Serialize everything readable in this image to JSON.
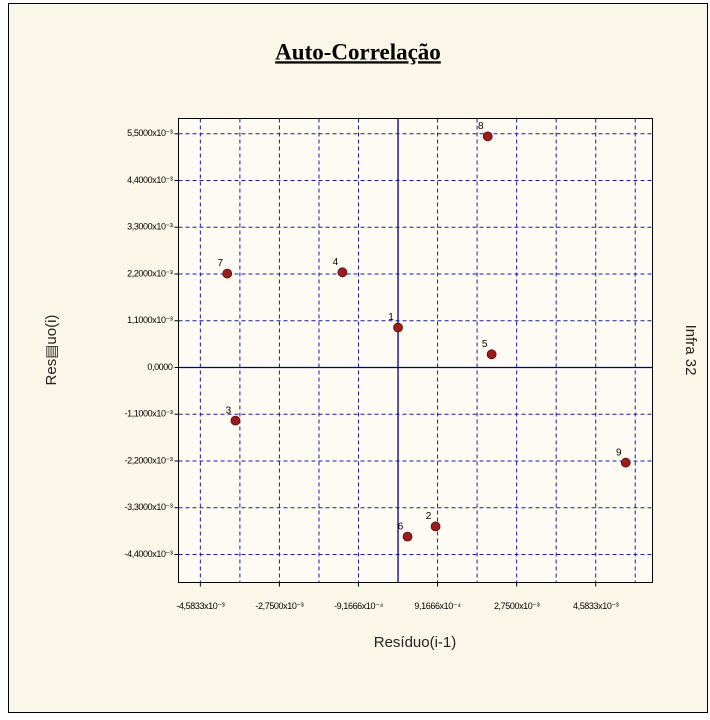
{
  "chart_data": {
    "type": "scatter",
    "title": "Auto-Correlação",
    "xlabel": "Resíduo(i-1)",
    "ylabel": "Res▤uo(i)",
    "side_label": "Infra 32",
    "color": "#9b1c1c",
    "grid": true,
    "grid_color": "#1a1aa6",
    "point_labels": [
      "1",
      "2",
      "3",
      "4",
      "5",
      "6",
      "7",
      "8",
      "9"
    ],
    "x": [
      0.0,
      0.00087,
      -0.00377,
      -0.00129,
      0.00217,
      0.00022,
      -0.00396,
      0.00208,
      0.00528
    ],
    "values": [
      0.00094,
      -0.00374,
      -0.00125,
      0.00224,
      0.00031,
      -0.00398,
      0.00221,
      0.00544,
      -0.00224
    ],
    "xlim": [
      -0.00509,
      0.0059
    ],
    "ylim": [
      -0.00506,
      0.00586
    ],
    "xticks": [
      {
        "value": -0.0045833,
        "label": "-4,5833x10⁻³"
      },
      {
        "value": -0.00275,
        "label": "-2,7500x10⁻³"
      },
      {
        "value": -0.00091666,
        "label": "-9,1666x10⁻⁴"
      },
      {
        "value": 0.00091666,
        "label": "9,1666x10⁻⁴"
      },
      {
        "value": 0.00275,
        "label": "2,7500x10⁻³"
      },
      {
        "value": 0.0045833,
        "label": "4,5833x10⁻³"
      }
    ],
    "xgrid": [
      -0.0045833,
      -0.0036666,
      -0.00275,
      -0.0018333,
      -0.00091666,
      0.00091666,
      0.0018333,
      0.00275,
      0.0036666,
      0.0045833,
      0.0055
    ],
    "yticks": [
      {
        "value": 0.0055,
        "label": "5,5000x10⁻³"
      },
      {
        "value": 0.0044,
        "label": "4,4000x10⁻³"
      },
      {
        "value": 0.0033,
        "label": "3,3000x10⁻³"
      },
      {
        "value": 0.0022,
        "label": "2,2000x10⁻³"
      },
      {
        "value": 0.0011,
        "label": "1,1000x10⁻³"
      },
      {
        "value": 0,
        "label": "0,0000"
      },
      {
        "value": -0.0011,
        "label": "-1,1000x10⁻³"
      },
      {
        "value": -0.0022,
        "label": "-2,2000x10⁻³"
      },
      {
        "value": -0.0033,
        "label": "-3,3000x10⁻³"
      },
      {
        "value": -0.0044,
        "label": "-4,4000x10⁻³"
      }
    ]
  }
}
